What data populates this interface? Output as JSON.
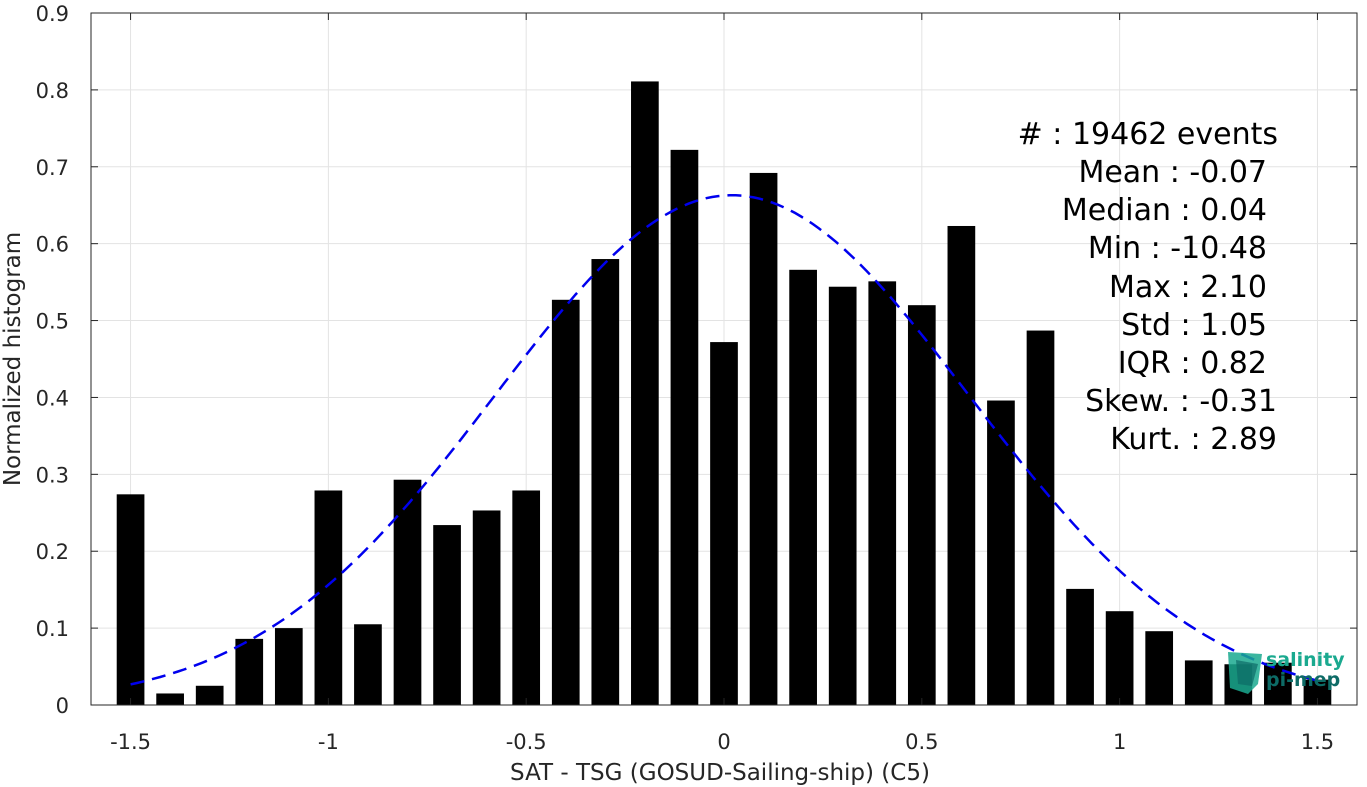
{
  "chart_data": {
    "type": "bar",
    "xlabel": "SAT - TSG (GOSUD-Sailing-ship) (C5)",
    "ylabel": "Normalized histogram",
    "xlim": [
      -1.6,
      1.6
    ],
    "ylim": [
      0,
      0.9
    ],
    "xticks": [
      -1.5,
      -1,
      -0.5,
      0,
      0.5,
      1,
      1.5
    ],
    "xtick_labels": [
      "-1.5",
      "-1",
      "-0.5",
      "0",
      "0.5",
      "1",
      "1.5"
    ],
    "yticks": [
      0,
      0.1,
      0.2,
      0.3,
      0.4,
      0.5,
      0.6,
      0.7,
      0.8,
      0.9
    ],
    "ytick_labels": [
      "0",
      "0.1",
      "0.2",
      "0.3",
      "0.4",
      "0.5",
      "0.6",
      "0.7",
      "0.8",
      "0.9"
    ],
    "grid": true,
    "bar_width": 0.07,
    "bars": {
      "x": [
        -1.5,
        -1.4,
        -1.3,
        -1.2,
        -1.1,
        -1.0,
        -0.9,
        -0.8,
        -0.7,
        -0.6,
        -0.5,
        -0.4,
        -0.3,
        -0.2,
        -0.1,
        0.0,
        0.1,
        0.2,
        0.3,
        0.4,
        0.5,
        0.6,
        0.7,
        0.8,
        0.9,
        1.0,
        1.1,
        1.2,
        1.3,
        1.4,
        1.5
      ],
      "values": [
        0.274,
        0.015,
        0.025,
        0.086,
        0.1,
        0.279,
        0.105,
        0.293,
        0.234,
        0.253,
        0.279,
        0.527,
        0.58,
        0.811,
        0.722,
        0.472,
        0.692,
        0.566,
        0.544,
        0.551,
        0.52,
        0.623,
        0.396,
        0.487,
        0.151,
        0.122,
        0.096,
        0.058,
        0.053,
        0.055,
        0.033
      ],
      "color": "#000000"
    },
    "fit_curve": {
      "style": "dashed",
      "color": "#0000ee",
      "mean": 0.02,
      "std": 0.6,
      "peak": 0.663,
      "x_range": [
        -1.5,
        1.5
      ]
    },
    "stats_lines": [
      "#  : 19462 events",
      "Mean : -0.07",
      "Median : 0.04",
      "Min : -10.48",
      "Max : 2.10",
      "Std : 1.05",
      "IQR : 0.82",
      "Skew. : -0.31",
      "Kurt. : 2.89"
    ]
  },
  "logo": {
    "line1": "salinity",
    "line2": "pi-mep",
    "colors": [
      "#1aa98f",
      "#0d6b66",
      "#2dd4b0"
    ]
  }
}
